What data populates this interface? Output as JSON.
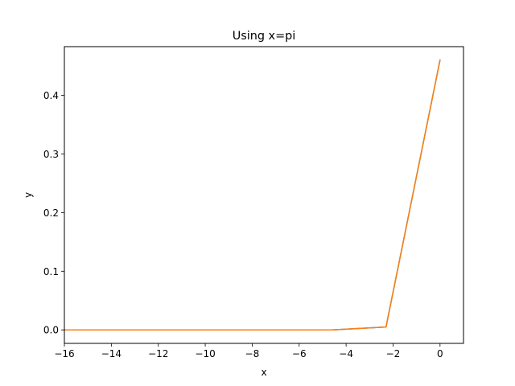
{
  "chart_data": {
    "type": "line",
    "title": "Using x=pi",
    "xlabel": "x",
    "ylabel": "y",
    "xlim": [
      -16,
      1
    ],
    "ylim": [
      -0.023,
      0.483
    ],
    "xticks": [
      -16,
      -14,
      -12,
      -10,
      -8,
      -6,
      -4,
      -2,
      0
    ],
    "xtick_labels": [
      "−16",
      "−14",
      "−12",
      "−10",
      "−8",
      "−6",
      "−4",
      "−2",
      "0"
    ],
    "yticks": [
      0.0,
      0.1,
      0.2,
      0.3,
      0.4
    ],
    "ytick_labels": [
      "0.0",
      "0.1",
      "0.2",
      "0.3",
      "0.4"
    ],
    "grid": false,
    "series": [
      {
        "color": "#1f77b4",
        "x": [
          -16,
          -13.8,
          -11.5,
          -9.2,
          -6.9,
          -4.6,
          -2.3,
          0
        ],
        "y": [
          0.0,
          0.0,
          0.0,
          0.0,
          0.0,
          0.0,
          0.005,
          0.46
        ]
      },
      {
        "color": "#ff7f0e",
        "x": [
          -16,
          -13.8,
          -11.5,
          -9.2,
          -6.9,
          -4.6,
          -2.3,
          0
        ],
        "y": [
          0.0,
          0.0,
          0.0,
          0.0,
          0.0,
          0.0,
          0.005,
          0.46
        ]
      }
    ]
  }
}
